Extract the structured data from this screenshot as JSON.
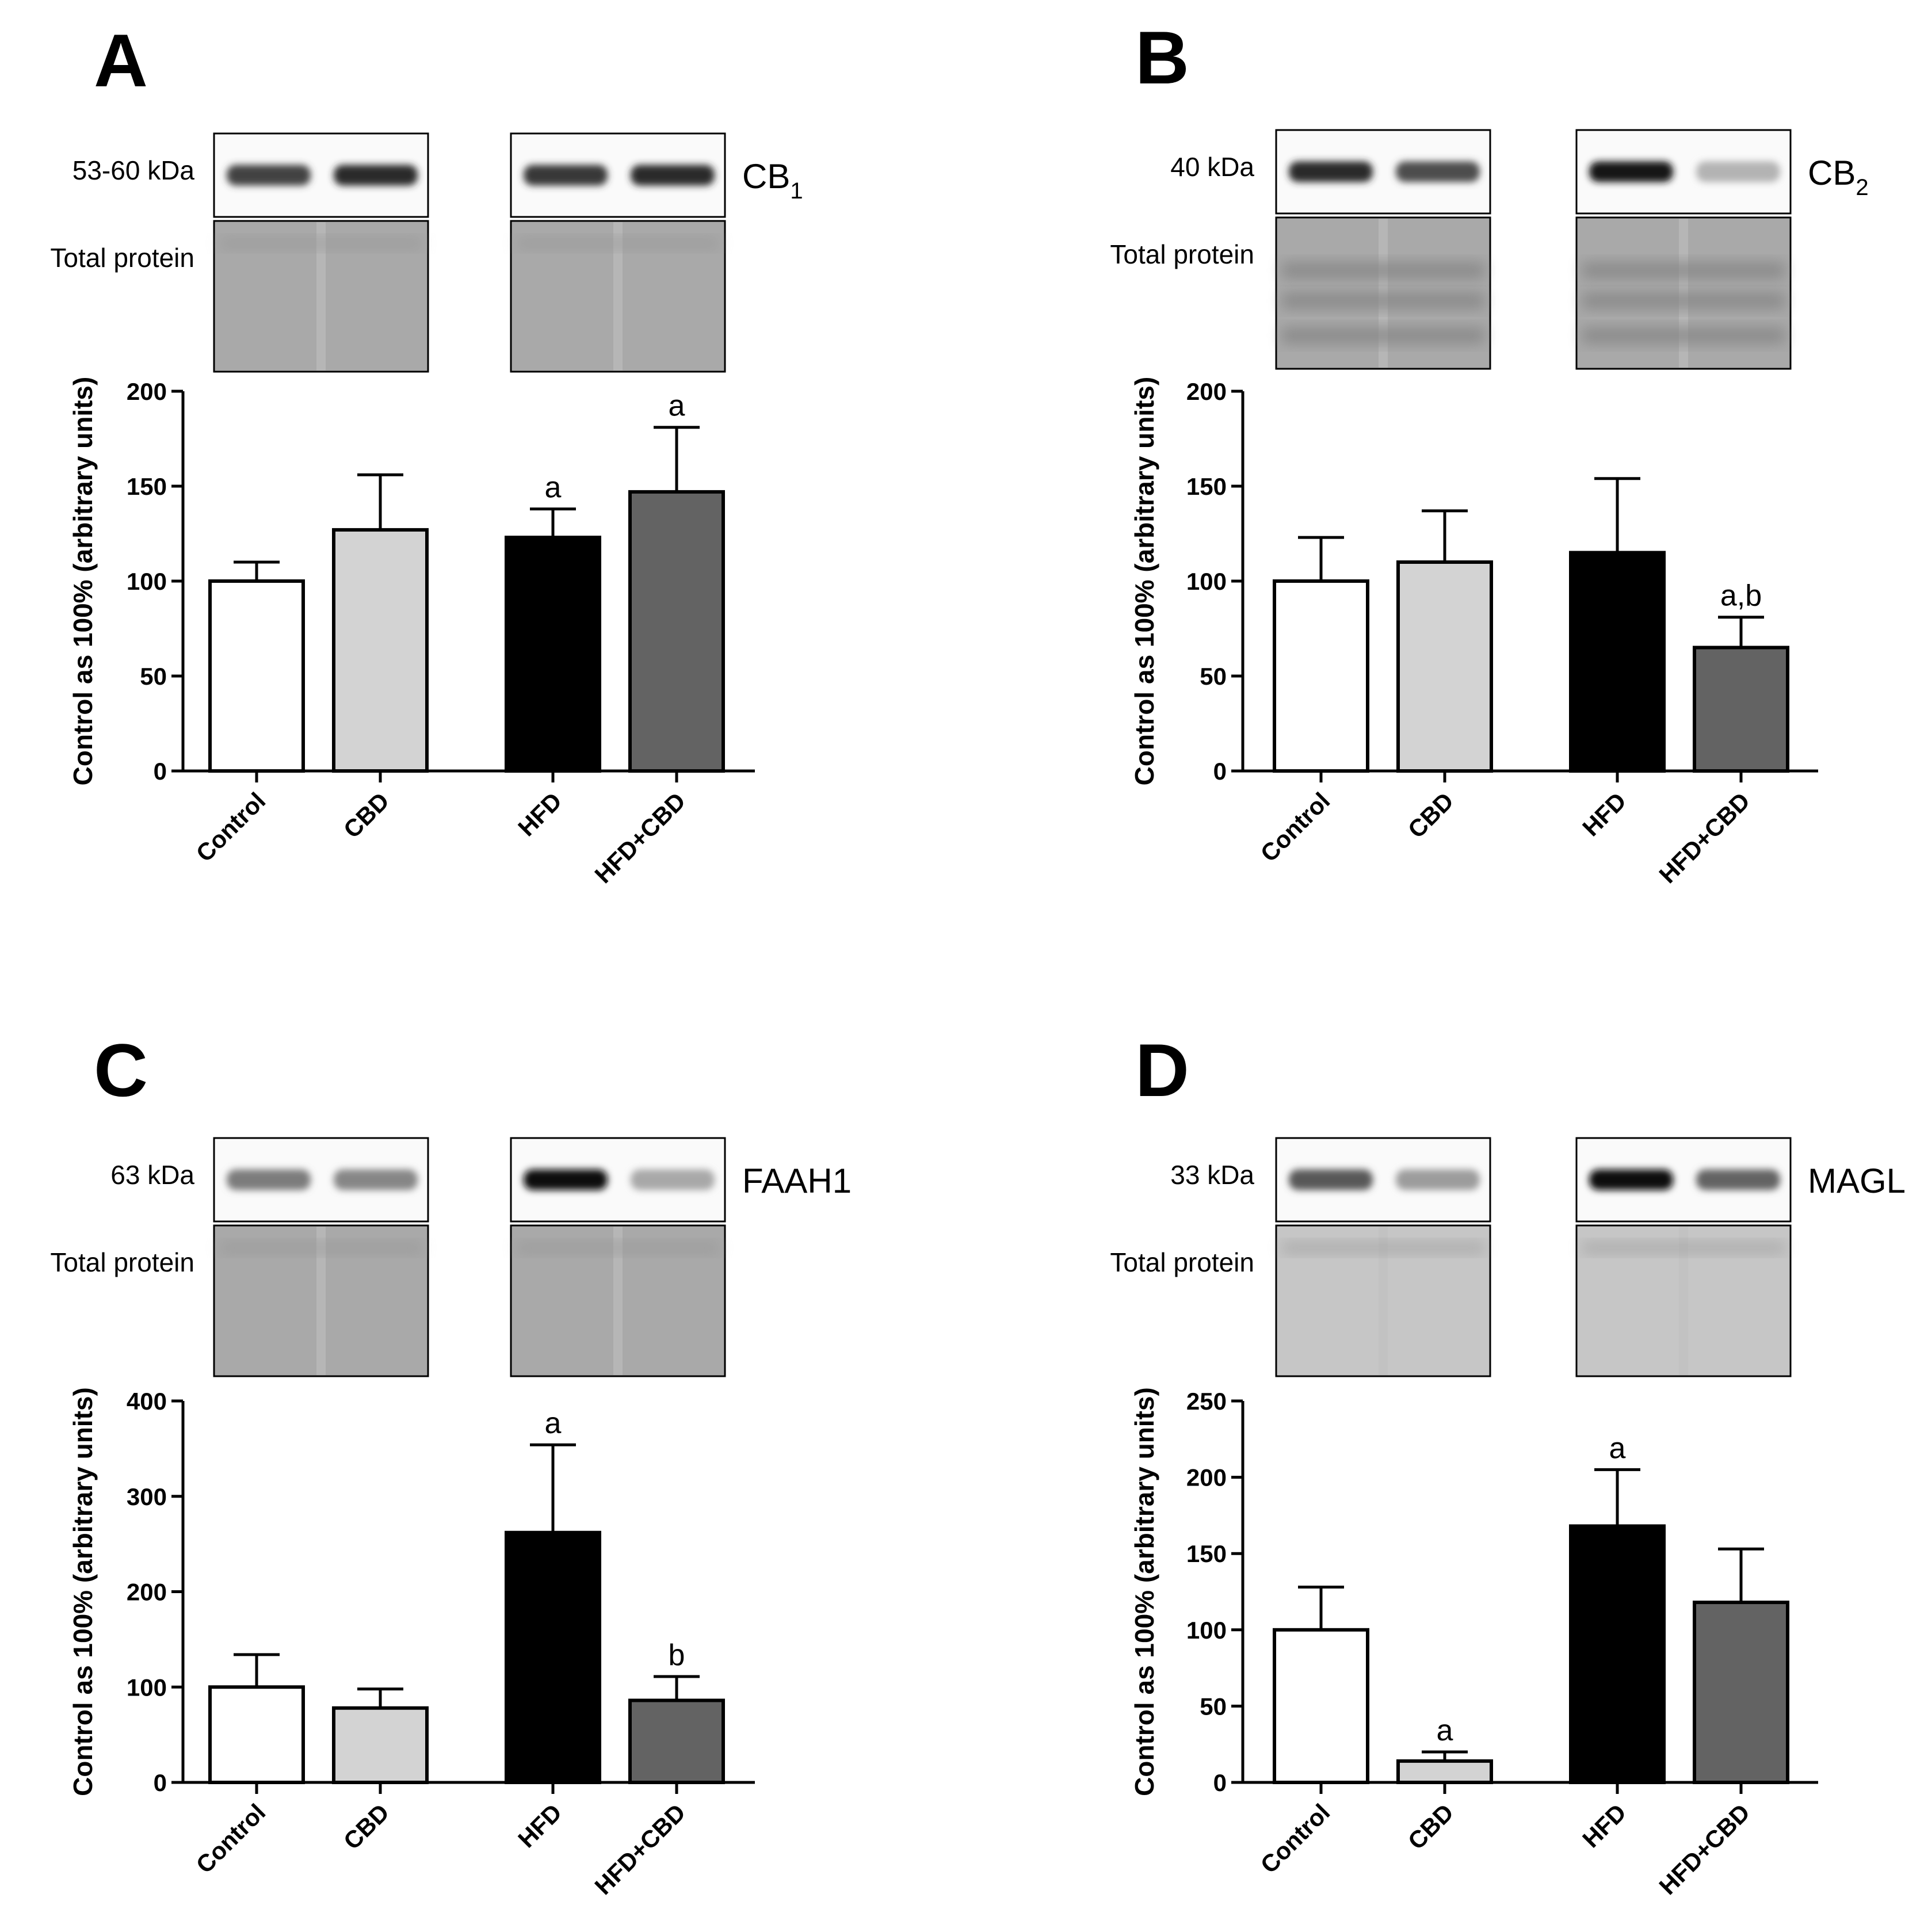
{
  "panels": [
    {
      "letter": "A",
      "kda": "53-60 kDa",
      "total_label": "Total protein",
      "protein": "CB",
      "protein_sub": "1",
      "band_intensity": [
        0.75,
        0.85,
        0.8,
        0.85
      ],
      "total_style": "plain"
    },
    {
      "letter": "B",
      "kda": "40 kDa",
      "total_label": "Total protein",
      "protein": "CB",
      "protein_sub": "2",
      "band_intensity": [
        0.85,
        0.7,
        0.95,
        0.25
      ],
      "total_style": "banded"
    },
    {
      "letter": "C",
      "kda": "63 kDa",
      "total_label": "Total protein",
      "protein": "FAAH1",
      "protein_sub": "",
      "band_intensity": [
        0.5,
        0.45,
        1.0,
        0.3
      ],
      "total_style": "plain"
    },
    {
      "letter": "D",
      "kda": "33 kDa",
      "total_label": "Total protein",
      "protein": "MAGL",
      "protein_sub": "",
      "band_intensity": [
        0.65,
        0.35,
        1.0,
        0.6
      ],
      "total_style": "light"
    }
  ],
  "chart_data": [
    {
      "type": "bar",
      "panel": "A",
      "categories": [
        "Control",
        "CBD",
        "HFD",
        "HFD+CBD"
      ],
      "values": [
        100,
        127,
        123,
        147
      ],
      "errors": [
        10,
        29,
        15,
        34
      ],
      "significance": [
        "",
        "",
        "a",
        "a"
      ],
      "fill_colors": [
        "#ffffff",
        "#d3d3d3",
        "#000000",
        "#636363"
      ],
      "ylabel": "Control as 100% (arbitrary units)",
      "ylim": [
        0,
        200
      ],
      "yticks": [
        "0",
        "50",
        "100",
        "150",
        "200"
      ]
    },
    {
      "type": "bar",
      "panel": "B",
      "categories": [
        "Control",
        "CBD",
        "HFD",
        "HFD+CBD"
      ],
      "values": [
        100,
        110,
        115,
        65
      ],
      "errors": [
        23,
        27,
        39,
        16
      ],
      "significance": [
        "",
        "",
        "",
        "a,b"
      ],
      "fill_colors": [
        "#ffffff",
        "#d3d3d3",
        "#000000",
        "#636363"
      ],
      "ylabel": "Control as 100% (arbitrary units)",
      "ylim": [
        0,
        200
      ],
      "yticks": [
        "0",
        "50",
        "100",
        "150",
        "200"
      ]
    },
    {
      "type": "bar",
      "panel": "C",
      "categories": [
        "Control",
        "CBD",
        "HFD",
        "HFD+CBD"
      ],
      "values": [
        100,
        78,
        262,
        86
      ],
      "errors": [
        34,
        20,
        92,
        25
      ],
      "significance": [
        "",
        "",
        "a",
        "b"
      ],
      "fill_colors": [
        "#ffffff",
        "#d3d3d3",
        "#000000",
        "#636363"
      ],
      "ylabel": "Control as 100% (arbitrary units)",
      "ylim": [
        0,
        400
      ],
      "yticks": [
        "0",
        "100",
        "200",
        "300",
        "400"
      ]
    },
    {
      "type": "bar",
      "panel": "D",
      "categories": [
        "Control",
        "CBD",
        "HFD",
        "HFD+CBD"
      ],
      "values": [
        100,
        14,
        168,
        118
      ],
      "errors": [
        28,
        6,
        37,
        35
      ],
      "significance": [
        "",
        "a",
        "a",
        ""
      ],
      "fill_colors": [
        "#ffffff",
        "#d3d3d3",
        "#000000",
        "#636363"
      ],
      "ylabel": "Control as 100% (arbitrary units)",
      "ylim": [
        0,
        250
      ],
      "yticks": [
        "0",
        "50",
        "100",
        "150",
        "200",
        "250"
      ]
    }
  ]
}
